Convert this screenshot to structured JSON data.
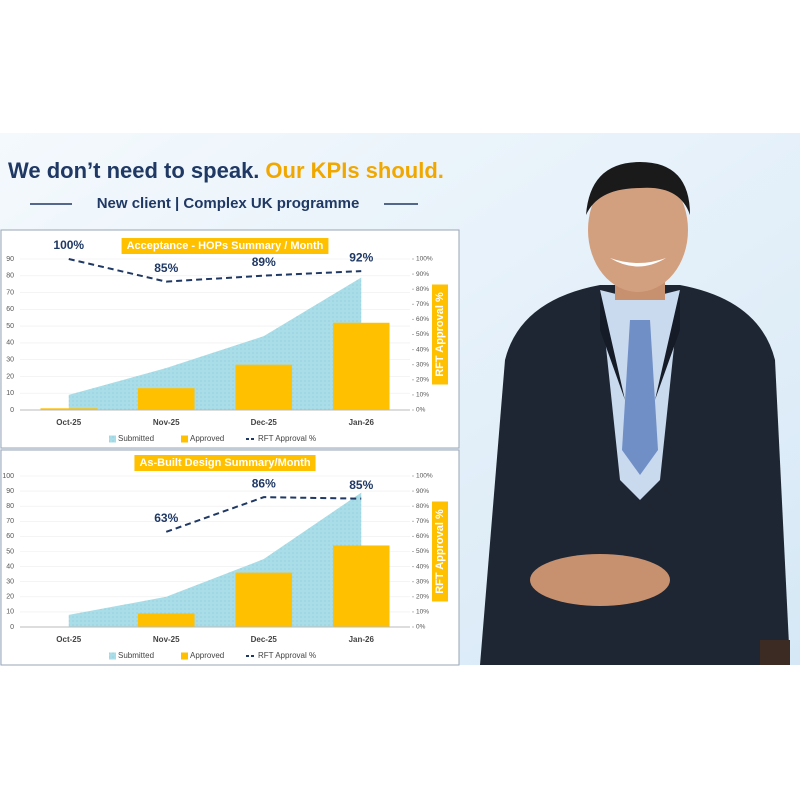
{
  "header": {
    "headline_lead": "We don’t need to speak.",
    "headline_emphasis": "Our KPIs should.",
    "subtitle": "New client | Complex UK programme"
  },
  "chart_data": [
    {
      "type": "combo",
      "title": "Acceptance - HOPs Summary / Month",
      "categories": [
        "Oct-25",
        "Nov-25",
        "Dec-25",
        "Jan-26"
      ],
      "series": [
        {
          "name": "Submitted",
          "type": "area",
          "color": "#a9dde7",
          "values": [
            9,
            25,
            44,
            79
          ]
        },
        {
          "name": "Approved",
          "type": "bar",
          "color": "#ffc000",
          "values": [
            1,
            13,
            27,
            52
          ]
        },
        {
          "name": "RFT Approval %",
          "type": "line",
          "axis": "y2",
          "color": "#1f3864",
          "values": [
            100,
            85,
            89,
            92
          ],
          "value_labels": [
            "100%",
            "85%",
            "89%",
            "92%"
          ]
        }
      ],
      "ylim": [
        0,
        90
      ],
      "yticks": [
        0,
        10,
        20,
        30,
        40,
        50,
        60,
        70,
        80,
        90
      ],
      "y2lim": [
        0,
        100
      ],
      "y2ticks": [
        {
          "value": 0,
          "label": "0%"
        },
        {
          "value": 10,
          "label": "10%"
        },
        {
          "value": 20,
          "label": "20%"
        },
        {
          "value": 30,
          "label": "30%"
        },
        {
          "value": 40,
          "label": "40%"
        },
        {
          "value": 50,
          "label": "50%"
        },
        {
          "value": 60,
          "label": "60%"
        },
        {
          "value": 70,
          "label": "70%"
        },
        {
          "value": 80,
          "label": "80%"
        },
        {
          "value": 90,
          "label": "90%"
        },
        {
          "value": 100,
          "label": "100%"
        }
      ],
      "y2label": "RFT Approval %",
      "legend": "bottom"
    },
    {
      "type": "combo",
      "title": "As-Built Design Summary/Month",
      "categories": [
        "Oct-25",
        "Nov-25",
        "Dec-25",
        "Jan-26"
      ],
      "series": [
        {
          "name": "Submitted",
          "type": "area",
          "color": "#a9dde7",
          "values": [
            8,
            20,
            45,
            89
          ]
        },
        {
          "name": "Approved",
          "type": "bar",
          "color": "#ffc000",
          "values": [
            null,
            9,
            36,
            54
          ]
        },
        {
          "name": "RFT Approval %",
          "type": "line",
          "axis": "y2",
          "color": "#1f3864",
          "values": [
            null,
            63,
            86,
            85
          ],
          "value_labels": [
            null,
            "63%",
            "86%",
            "85%"
          ]
        }
      ],
      "ylim": [
        0,
        100
      ],
      "yticks": [
        0,
        10,
        20,
        30,
        40,
        50,
        60,
        70,
        80,
        90,
        100
      ],
      "y2lim": [
        0,
        100
      ],
      "y2ticks": [
        {
          "value": 0,
          "label": "0%"
        },
        {
          "value": 10,
          "label": "10%"
        },
        {
          "value": 20,
          "label": "20%"
        },
        {
          "value": 30,
          "label": "30%"
        },
        {
          "value": 40,
          "label": "40%"
        },
        {
          "value": 50,
          "label": "50%"
        },
        {
          "value": 60,
          "label": "60%"
        },
        {
          "value": 70,
          "label": "70%"
        },
        {
          "value": 80,
          "label": "80%"
        },
        {
          "value": 90,
          "label": "90%"
        },
        {
          "value": 100,
          "label": "100%"
        }
      ],
      "y2label": "RFT Approval %",
      "legend": "bottom"
    }
  ]
}
